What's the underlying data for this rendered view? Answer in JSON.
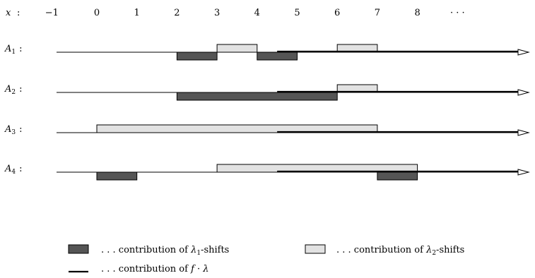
{
  "axis": {
    "var": "x",
    "sep": ":",
    "ticks": [
      "−1",
      "0",
      "1",
      "2",
      "3",
      "4",
      "5",
      "6",
      "7",
      "8",
      "· · ·"
    ]
  },
  "colors": {
    "dark": "#555555",
    "light": "#e2e2e2",
    "stroke": "#000000"
  },
  "rows": [
    {
      "var": "A",
      "sub": "1",
      "sep": ":",
      "dark": [
        [
          2,
          3
        ],
        [
          4,
          5
        ]
      ],
      "light": [
        [
          3,
          4
        ],
        [
          6,
          7
        ]
      ]
    },
    {
      "var": "A",
      "sub": "2",
      "sep": ":",
      "dark": [
        [
          2,
          6
        ]
      ],
      "light": [
        [
          6,
          7
        ]
      ]
    },
    {
      "var": "A",
      "sub": "3",
      "sep": ":",
      "dark": [],
      "light": [
        [
          0,
          7
        ]
      ]
    },
    {
      "var": "A",
      "sub": "4",
      "sep": ":",
      "dark": [
        [
          0,
          1
        ],
        [
          7,
          8
        ]
      ],
      "light": [
        [
          3,
          8
        ]
      ]
    }
  ],
  "f_lambda_from": 4.5,
  "legend": {
    "dark_pre": ". . . contribution of ",
    "dark_sym": "λ",
    "dark_sub": "1",
    "dark_post": "-shifts",
    "light_pre": ". . . contribution of ",
    "light_sym": "λ",
    "light_sub": "2",
    "light_post": "-shifts",
    "line_pre": ". . . contribution of ",
    "line_f": "f",
    "line_mid": " · ",
    "line_sym": "λ"
  }
}
